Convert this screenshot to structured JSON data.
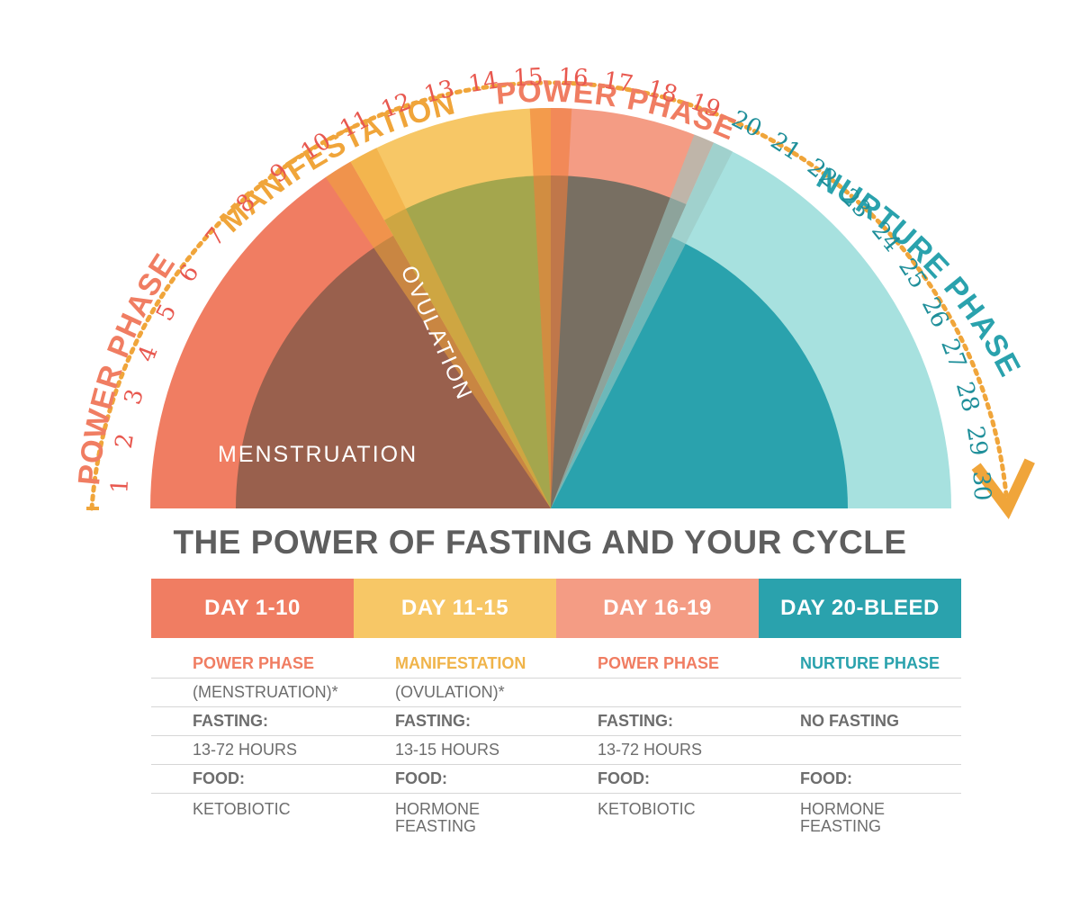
{
  "colors": {
    "coral": "#f07d62",
    "yellow": "#f7c766",
    "salmon": "#f49c84",
    "teal": "#2aa2ad",
    "light_teal": "#a7e1df",
    "arrow_orange": "#f0a53a",
    "title_gray": "#5e5e5e"
  },
  "arc_labels": {
    "power_phase_left": "POWER PHASE",
    "manifestation": "MANIFESTATION",
    "power_phase_top": "POWER PHASE",
    "nurture_phase": "NURTURE PHASE"
  },
  "days": [
    "1",
    "2",
    "3",
    "4",
    "5",
    "6",
    "7",
    "8",
    "9",
    "10",
    "11",
    "12",
    "13",
    "14",
    "15",
    "16",
    "17",
    "18",
    "19",
    "20",
    "21",
    "22",
    "23",
    "24",
    "25",
    "26",
    "27",
    "28",
    "29",
    "30"
  ],
  "inner_labels": {
    "menstruation": "MENSTRUATION",
    "ovulation": "OVULATION"
  },
  "title": "THE POWER OF FASTING AND YOUR CYCLE",
  "columns": [
    {
      "header": "DAY 1-10",
      "phase": "POWER PHASE",
      "subphase": "(MENSTRUATION)*",
      "fasting_label": "FASTING:",
      "fasting_value": "13-72 HOURS",
      "food_label": "FOOD:",
      "food_value": "KETOBIOTIC"
    },
    {
      "header": "DAY 11-15",
      "phase": "MANIFESTATION",
      "subphase": "(OVULATION)*",
      "fasting_label": "FASTING:",
      "fasting_value": "13-15 HOURS",
      "food_label": "FOOD:",
      "food_value": "HORMONE\nFEASTING"
    },
    {
      "header": "DAY 16-19",
      "phase": "POWER PHASE",
      "subphase": "",
      "fasting_label": "FASTING:",
      "fasting_value": "13-72 HOURS",
      "food_label": "FOOD:",
      "food_value": "KETOBIOTIC"
    },
    {
      "header": "DAY 20-BLEED",
      "phase": "NURTURE PHASE",
      "subphase": "",
      "fasting_label": "NO FASTING",
      "fasting_value": "",
      "food_label": "FOOD:",
      "food_value": "HORMONE\nFEASTING"
    }
  ]
}
